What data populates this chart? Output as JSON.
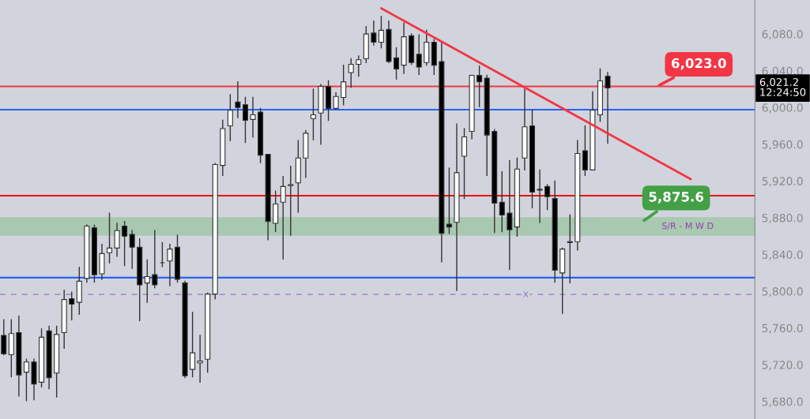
{
  "chart_data": {
    "type": "candlestick",
    "categories": [
      null,
      null,
      null,
      null,
      null,
      null,
      null,
      null,
      null,
      null,
      null,
      null,
      null,
      null,
      null,
      null,
      null,
      null,
      null,
      null,
      null,
      null,
      null,
      null,
      null,
      null,
      null,
      null,
      null,
      null,
      null,
      null,
      null,
      null,
      null,
      null,
      null,
      null,
      null,
      null,
      null,
      null,
      null,
      null,
      null,
      null,
      null,
      null,
      null,
      null,
      null,
      null,
      null,
      null,
      null,
      null,
      null,
      null,
      null,
      null,
      null,
      null,
      null,
      null,
      null,
      null,
      null,
      null,
      null,
      null,
      null,
      null,
      null,
      null,
      null,
      null,
      null,
      null,
      null,
      null,
      null,
      null,
      null,
      null,
      null,
      null,
      null,
      null,
      null,
      null,
      null,
      null,
      null,
      null,
      null,
      null,
      null,
      null,
      null,
      null
    ],
    "ohlc": [
      [
        5752,
        5769,
        5731,
        5732
      ],
      [
        5731,
        5769,
        5707,
        5754
      ],
      [
        5755,
        5773,
        5686,
        5709
      ],
      [
        5712,
        5726,
        5681,
        5723
      ],
      [
        5723,
        5726,
        5682,
        5699
      ],
      [
        5701,
        5759,
        5696,
        5750
      ],
      [
        5757,
        5762,
        5694,
        5706
      ],
      [
        5711,
        5762,
        5685,
        5753
      ],
      [
        5755,
        5801,
        5738,
        5791
      ],
      [
        5792,
        5799,
        5769,
        5786
      ],
      [
        5788,
        5826,
        5775,
        5811
      ],
      [
        5814,
        5872,
        5810,
        5871
      ],
      [
        5869,
        5872,
        5810,
        5818
      ],
      [
        5819,
        5851,
        5813,
        5841
      ],
      [
        5842,
        5885,
        5831,
        5847
      ],
      [
        5847,
        5874,
        5838,
        5866
      ],
      [
        5871,
        5876,
        5828,
        5860
      ],
      [
        5862,
        5866,
        5825,
        5848
      ],
      [
        5848,
        5857,
        5768,
        5807
      ],
      [
        5809,
        5834,
        5788,
        5816
      ],
      [
        5818,
        5866,
        5804,
        5807
      ],
      [
        5831,
        5853,
        5827,
        5831
      ],
      [
        5833,
        5851,
        5806,
        5846
      ],
      [
        5848,
        5861,
        5810,
        5813
      ],
      [
        5809,
        5811,
        5706,
        5708
      ],
      [
        5715,
        5777,
        5707,
        5733
      ],
      [
        5722,
        5752,
        5701,
        5724
      ],
      [
        5726,
        5798,
        5712,
        5797
      ],
      [
        5797,
        5939,
        5792,
        5938
      ],
      [
        5937,
        5986,
        5926,
        5977
      ],
      [
        5980,
        6014,
        5964,
        5997
      ],
      [
        6006,
        6028,
        5989,
        6000
      ],
      [
        6003,
        6011,
        5962,
        5986
      ],
      [
        5987,
        6011,
        5968,
        5992
      ],
      [
        5995,
        5999,
        5940,
        5948
      ],
      [
        5949,
        5949,
        5856,
        5876
      ],
      [
        5874,
        5909,
        5865,
        5895
      ],
      [
        5897,
        5925,
        5835,
        5914
      ],
      [
        5915,
        5936,
        5861,
        5916
      ],
      [
        5918,
        5964,
        5886,
        5945
      ],
      [
        5945,
        5975,
        5924,
        5972
      ],
      [
        5988,
        6020,
        5965,
        5992
      ],
      [
        5994,
        6025,
        5960,
        6023
      ],
      [
        6023,
        6029,
        5986,
        5999
      ],
      [
        5999,
        6016,
        5998,
        6012
      ],
      [
        6011,
        6046,
        6003,
        6028
      ],
      [
        6038,
        6053,
        6022,
        6047
      ],
      [
        6047,
        6056,
        6034,
        6052
      ],
      [
        6053,
        6088,
        6049,
        6080
      ],
      [
        6081,
        6094,
        6068,
        6071
      ],
      [
        6071,
        6099,
        6065,
        6084
      ],
      [
        6085,
        6094,
        6049,
        6050
      ],
      [
        6054,
        6065,
        6031,
        6042
      ],
      [
        6046,
        6092,
        6037,
        6077
      ],
      [
        6078,
        6080,
        6047,
        6049
      ],
      [
        6058,
        6079,
        6036,
        6044
      ],
      [
        6049,
        6084,
        6046,
        6071
      ],
      [
        6071,
        6074,
        6036,
        6046
      ],
      [
        6050,
        6071,
        5832,
        5863
      ],
      [
        5873,
        5934,
        5863,
        5870
      ],
      [
        5875,
        5982,
        5801,
        5929
      ],
      [
        5947,
        5977,
        5901,
        5968
      ],
      [
        5974,
        6035,
        5966,
        6035
      ],
      [
        6035,
        6045,
        6001,
        6028
      ],
      [
        6032,
        6035,
        5926,
        5970
      ],
      [
        5974,
        5976,
        5864,
        5896
      ],
      [
        5897,
        5930,
        5865,
        5883
      ],
      [
        5885,
        5942,
        5824,
        5867
      ],
      [
        5870,
        5945,
        5860,
        5933
      ],
      [
        5945,
        6020,
        5932,
        5979
      ],
      [
        5980,
        5997,
        5891,
        5908
      ],
      [
        5911,
        5932,
        5875,
        5910
      ],
      [
        5914,
        5916,
        5889,
        5903
      ],
      [
        5901,
        5920,
        5810,
        5823
      ],
      [
        5820,
        5847,
        5776,
        5846
      ],
      [
        5853,
        5883,
        5809,
        5854
      ],
      [
        5854,
        5964,
        5845,
        5950
      ],
      [
        5953,
        5980,
        5926,
        5932
      ],
      [
        5932,
        6017,
        5932,
        5997
      ],
      [
        5992,
        6042,
        5985,
        6029
      ],
      [
        6034,
        6038,
        5961,
        6021.2
      ],
      null,
      null,
      null,
      null,
      null,
      null,
      null,
      null,
      null,
      null,
      null,
      null,
      null,
      null,
      null,
      null,
      null,
      null,
      null
    ],
    "series": [
      {
        "type": "line",
        "color": "#f23645",
        "values": [
          null,
          null,
          null,
          null,
          null,
          null,
          null,
          null,
          null,
          null,
          null,
          null,
          null,
          null,
          null,
          null,
          null,
          null,
          null,
          null,
          null,
          null,
          null,
          null,
          null,
          null,
          null,
          null,
          null,
          null,
          null,
          null,
          null,
          null,
          null,
          null,
          null,
          null,
          null,
          null,
          null,
          null,
          null,
          null,
          null,
          null,
          null,
          null,
          null,
          null,
          6108,
          null,
          null,
          null,
          null,
          null,
          null,
          null,
          null,
          null,
          null,
          null,
          null,
          null,
          null,
          null,
          null,
          null,
          null,
          null,
          null,
          null,
          null,
          null,
          null,
          null,
          null,
          null,
          null,
          null,
          null,
          null,
          null,
          null,
          null,
          null,
          null,
          null,
          null,
          null,
          null,
          5922,
          null,
          null,
          null,
          null,
          null,
          null,
          null,
          null
        ]
      }
    ],
    "ylim": [
      5661,
      6117
    ],
    "yticks": [
      {
        "value": 5680,
        "label": "5,680.0"
      },
      {
        "value": 5720,
        "label": "5,720.0"
      },
      {
        "value": 5760,
        "label": "5,760.0"
      },
      {
        "value": 5800,
        "label": "5,800.0"
      },
      {
        "value": 5840,
        "label": "5,840.0"
      },
      {
        "value": 5880,
        "label": "5,880.0"
      },
      {
        "value": 5920,
        "label": "5,920.0"
      },
      {
        "value": 5960,
        "label": "5,960.0"
      },
      {
        "value": 6000,
        "label": "6,000.0"
      },
      {
        "value": 6040,
        "label": "6,040.0"
      },
      {
        "value": 6080,
        "label": "6,080.0"
      }
    ],
    "tick_labels": "y",
    "ref_lines": [
      {
        "axis": "y",
        "value": 5997.6,
        "color": "#2962ff"
      },
      {
        "axis": "y",
        "value": 5814.8,
        "color": "#2962ff"
      },
      {
        "axis": "y",
        "value": 5904,
        "color": "#f01010"
      },
      {
        "axis": "y",
        "value": 6023.0,
        "label": "6,023.0",
        "color": "#f23645"
      },
      {
        "axis": "y",
        "value": 5796.6,
        "label": "x",
        "color": "#9575cd",
        "line_style": "dashed"
      }
    ],
    "bands": [
      {
        "axis": "y",
        "from": 5861,
        "to": 5880,
        "label": "S/R - M W D",
        "color": "#4caf50"
      }
    ],
    "annotations": [
      {
        "text": "5,875.6",
        "y": 5875.6
      },
      "6,021.2\n12:24:50"
    ],
    "grid": false,
    "legend": false
  }
}
